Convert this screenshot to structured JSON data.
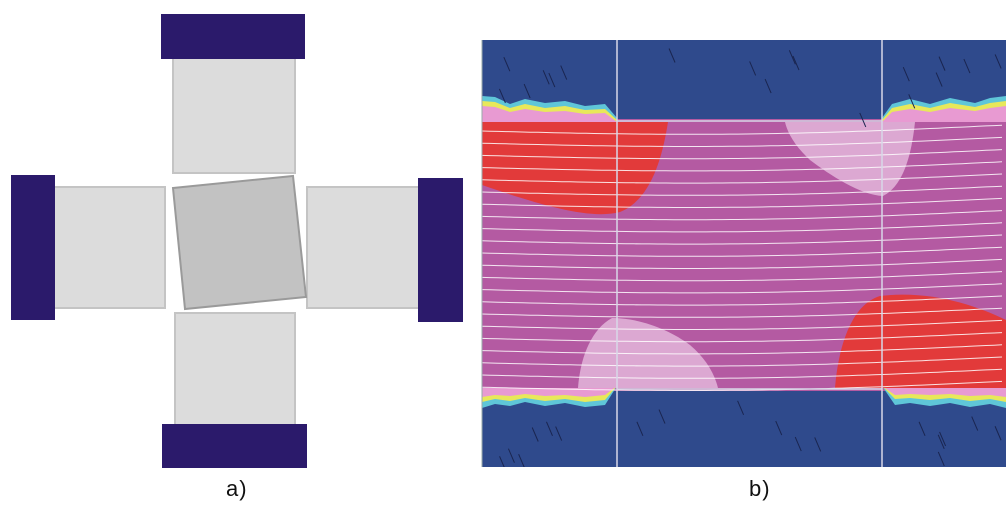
{
  "captions": {
    "a": "a)",
    "b": "b)"
  },
  "colors": {
    "clamp": "#2b1a6b",
    "specimen": "#dcdcdc",
    "specimen_edge": "#c4c4c4",
    "core": "#c2c2c2",
    "core_edge": "#9a9a9a",
    "field_blue": "#2f4a8c",
    "field_magenta": "#b45aa2",
    "field_red": "#e23a3a",
    "field_pink": "#dca8d2",
    "contour_line": "#ffffff",
    "grid_line": "#d8d8e8"
  }
}
